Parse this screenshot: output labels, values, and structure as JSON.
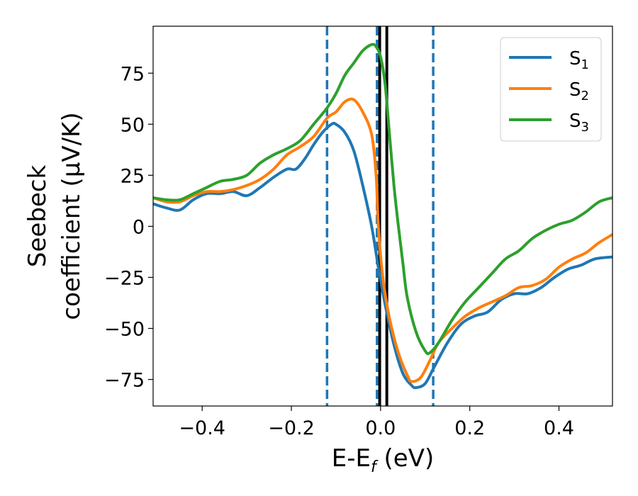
{
  "chart_data": {
    "type": "line",
    "xlabel": "E-E",
    "xlabel_sub": "f",
    "xlabel_unit": " (eV)",
    "ylabel_line1": "Seebeck",
    "ylabel_line2": "coefficient  (μV/K)",
    "xlim": [
      -0.51,
      0.52
    ],
    "ylim": [
      -88,
      98
    ],
    "x_ticks": [
      -0.4,
      -0.2,
      0.0,
      0.2,
      0.4
    ],
    "x_tick_labels": [
      "−0.4",
      "−0.2",
      "0.0",
      "0.2",
      "0.4"
    ],
    "y_ticks": [
      -75,
      -50,
      -25,
      0,
      25,
      50,
      75
    ],
    "y_tick_labels": [
      "−75",
      "−50",
      "−25",
      "0",
      "25",
      "50",
      "75"
    ],
    "grid": false,
    "legend_position": "top-right",
    "vlines": [
      {
        "x": -0.12,
        "style": "dashed",
        "color": "#1f77b4"
      },
      {
        "x": -0.008,
        "style": "dashed",
        "color": "#1f77b4"
      },
      {
        "x": 0.118,
        "style": "dashed",
        "color": "#1f77b4"
      },
      {
        "x": -0.002,
        "style": "solid",
        "color": "#000000"
      },
      {
        "x": 0.014,
        "style": "solid",
        "color": "#000000"
      }
    ],
    "series": [
      {
        "name": "S",
        "sub": "1",
        "color": "#1f77b4",
        "points": [
          [
            -0.51,
            11
          ],
          [
            -0.48,
            9
          ],
          [
            -0.45,
            8
          ],
          [
            -0.42,
            13
          ],
          [
            -0.39,
            16
          ],
          [
            -0.36,
            16
          ],
          [
            -0.33,
            17
          ],
          [
            -0.3,
            15
          ],
          [
            -0.27,
            19
          ],
          [
            -0.24,
            24
          ],
          [
            -0.21,
            28
          ],
          [
            -0.19,
            28
          ],
          [
            -0.17,
            33
          ],
          [
            -0.15,
            40
          ],
          [
            -0.13,
            46
          ],
          [
            -0.11,
            50
          ],
          [
            -0.1,
            50
          ],
          [
            -0.08,
            46
          ],
          [
            -0.06,
            37
          ],
          [
            -0.04,
            20
          ],
          [
            -0.02,
            0
          ],
          [
            -0.005,
            -20
          ],
          [
            0.01,
            -38
          ],
          [
            0.03,
            -58
          ],
          [
            0.05,
            -72
          ],
          [
            0.07,
            -78
          ],
          [
            0.08,
            -79
          ],
          [
            0.1,
            -77
          ],
          [
            0.12,
            -69
          ],
          [
            0.15,
            -57
          ],
          [
            0.18,
            -48
          ],
          [
            0.21,
            -44
          ],
          [
            0.24,
            -42
          ],
          [
            0.27,
            -36
          ],
          [
            0.3,
            -33
          ],
          [
            0.33,
            -33
          ],
          [
            0.36,
            -30
          ],
          [
            0.39,
            -25
          ],
          [
            0.42,
            -21
          ],
          [
            0.45,
            -19
          ],
          [
            0.48,
            -16
          ],
          [
            0.52,
            -15
          ]
        ]
      },
      {
        "name": "S",
        "sub": "2",
        "color": "#ff7f0e",
        "points": [
          [
            -0.51,
            14
          ],
          [
            -0.48,
            12
          ],
          [
            -0.45,
            12
          ],
          [
            -0.42,
            15
          ],
          [
            -0.39,
            17
          ],
          [
            -0.36,
            17
          ],
          [
            -0.33,
            18
          ],
          [
            -0.3,
            20
          ],
          [
            -0.27,
            23
          ],
          [
            -0.24,
            28
          ],
          [
            -0.21,
            35
          ],
          [
            -0.18,
            39
          ],
          [
            -0.15,
            44
          ],
          [
            -0.12,
            53
          ],
          [
            -0.1,
            56
          ],
          [
            -0.08,
            61
          ],
          [
            -0.06,
            62
          ],
          [
            -0.04,
            56
          ],
          [
            -0.02,
            45
          ],
          [
            -0.01,
            25
          ],
          [
            -0.005,
            0
          ],
          [
            0.005,
            -25
          ],
          [
            0.02,
            -45
          ],
          [
            0.04,
            -62
          ],
          [
            0.06,
            -73
          ],
          [
            0.07,
            -76
          ],
          [
            0.09,
            -74
          ],
          [
            0.11,
            -66
          ],
          [
            0.13,
            -57
          ],
          [
            0.16,
            -50
          ],
          [
            0.19,
            -44
          ],
          [
            0.22,
            -40
          ],
          [
            0.25,
            -37
          ],
          [
            0.28,
            -34
          ],
          [
            0.31,
            -30
          ],
          [
            0.34,
            -29
          ],
          [
            0.37,
            -26
          ],
          [
            0.4,
            -20
          ],
          [
            0.43,
            -16
          ],
          [
            0.46,
            -13
          ],
          [
            0.49,
            -8
          ],
          [
            0.52,
            -4
          ]
        ]
      },
      {
        "name": "S",
        "sub": "3",
        "color": "#2ca02c",
        "points": [
          [
            -0.51,
            14
          ],
          [
            -0.48,
            13
          ],
          [
            -0.45,
            13
          ],
          [
            -0.42,
            16
          ],
          [
            -0.39,
            19
          ],
          [
            -0.36,
            22
          ],
          [
            -0.33,
            23
          ],
          [
            -0.3,
            25
          ],
          [
            -0.27,
            31
          ],
          [
            -0.24,
            35
          ],
          [
            -0.21,
            38
          ],
          [
            -0.18,
            42
          ],
          [
            -0.15,
            50
          ],
          [
            -0.12,
            58
          ],
          [
            -0.1,
            65
          ],
          [
            -0.08,
            74
          ],
          [
            -0.06,
            80
          ],
          [
            -0.04,
            86
          ],
          [
            -0.02,
            89
          ],
          [
            -0.01,
            88
          ],
          [
            0.0,
            83
          ],
          [
            0.01,
            70
          ],
          [
            0.02,
            45
          ],
          [
            0.03,
            20
          ],
          [
            0.04,
            0
          ],
          [
            0.05,
            -18
          ],
          [
            0.06,
            -35
          ],
          [
            0.08,
            -52
          ],
          [
            0.1,
            -61
          ],
          [
            0.11,
            -62
          ],
          [
            0.13,
            -57
          ],
          [
            0.16,
            -46
          ],
          [
            0.19,
            -37
          ],
          [
            0.22,
            -30
          ],
          [
            0.25,
            -23
          ],
          [
            0.28,
            -16
          ],
          [
            0.31,
            -12
          ],
          [
            0.34,
            -6
          ],
          [
            0.37,
            -2
          ],
          [
            0.4,
            1
          ],
          [
            0.43,
            3
          ],
          [
            0.46,
            7
          ],
          [
            0.49,
            12
          ],
          [
            0.52,
            14
          ]
        ]
      }
    ]
  }
}
